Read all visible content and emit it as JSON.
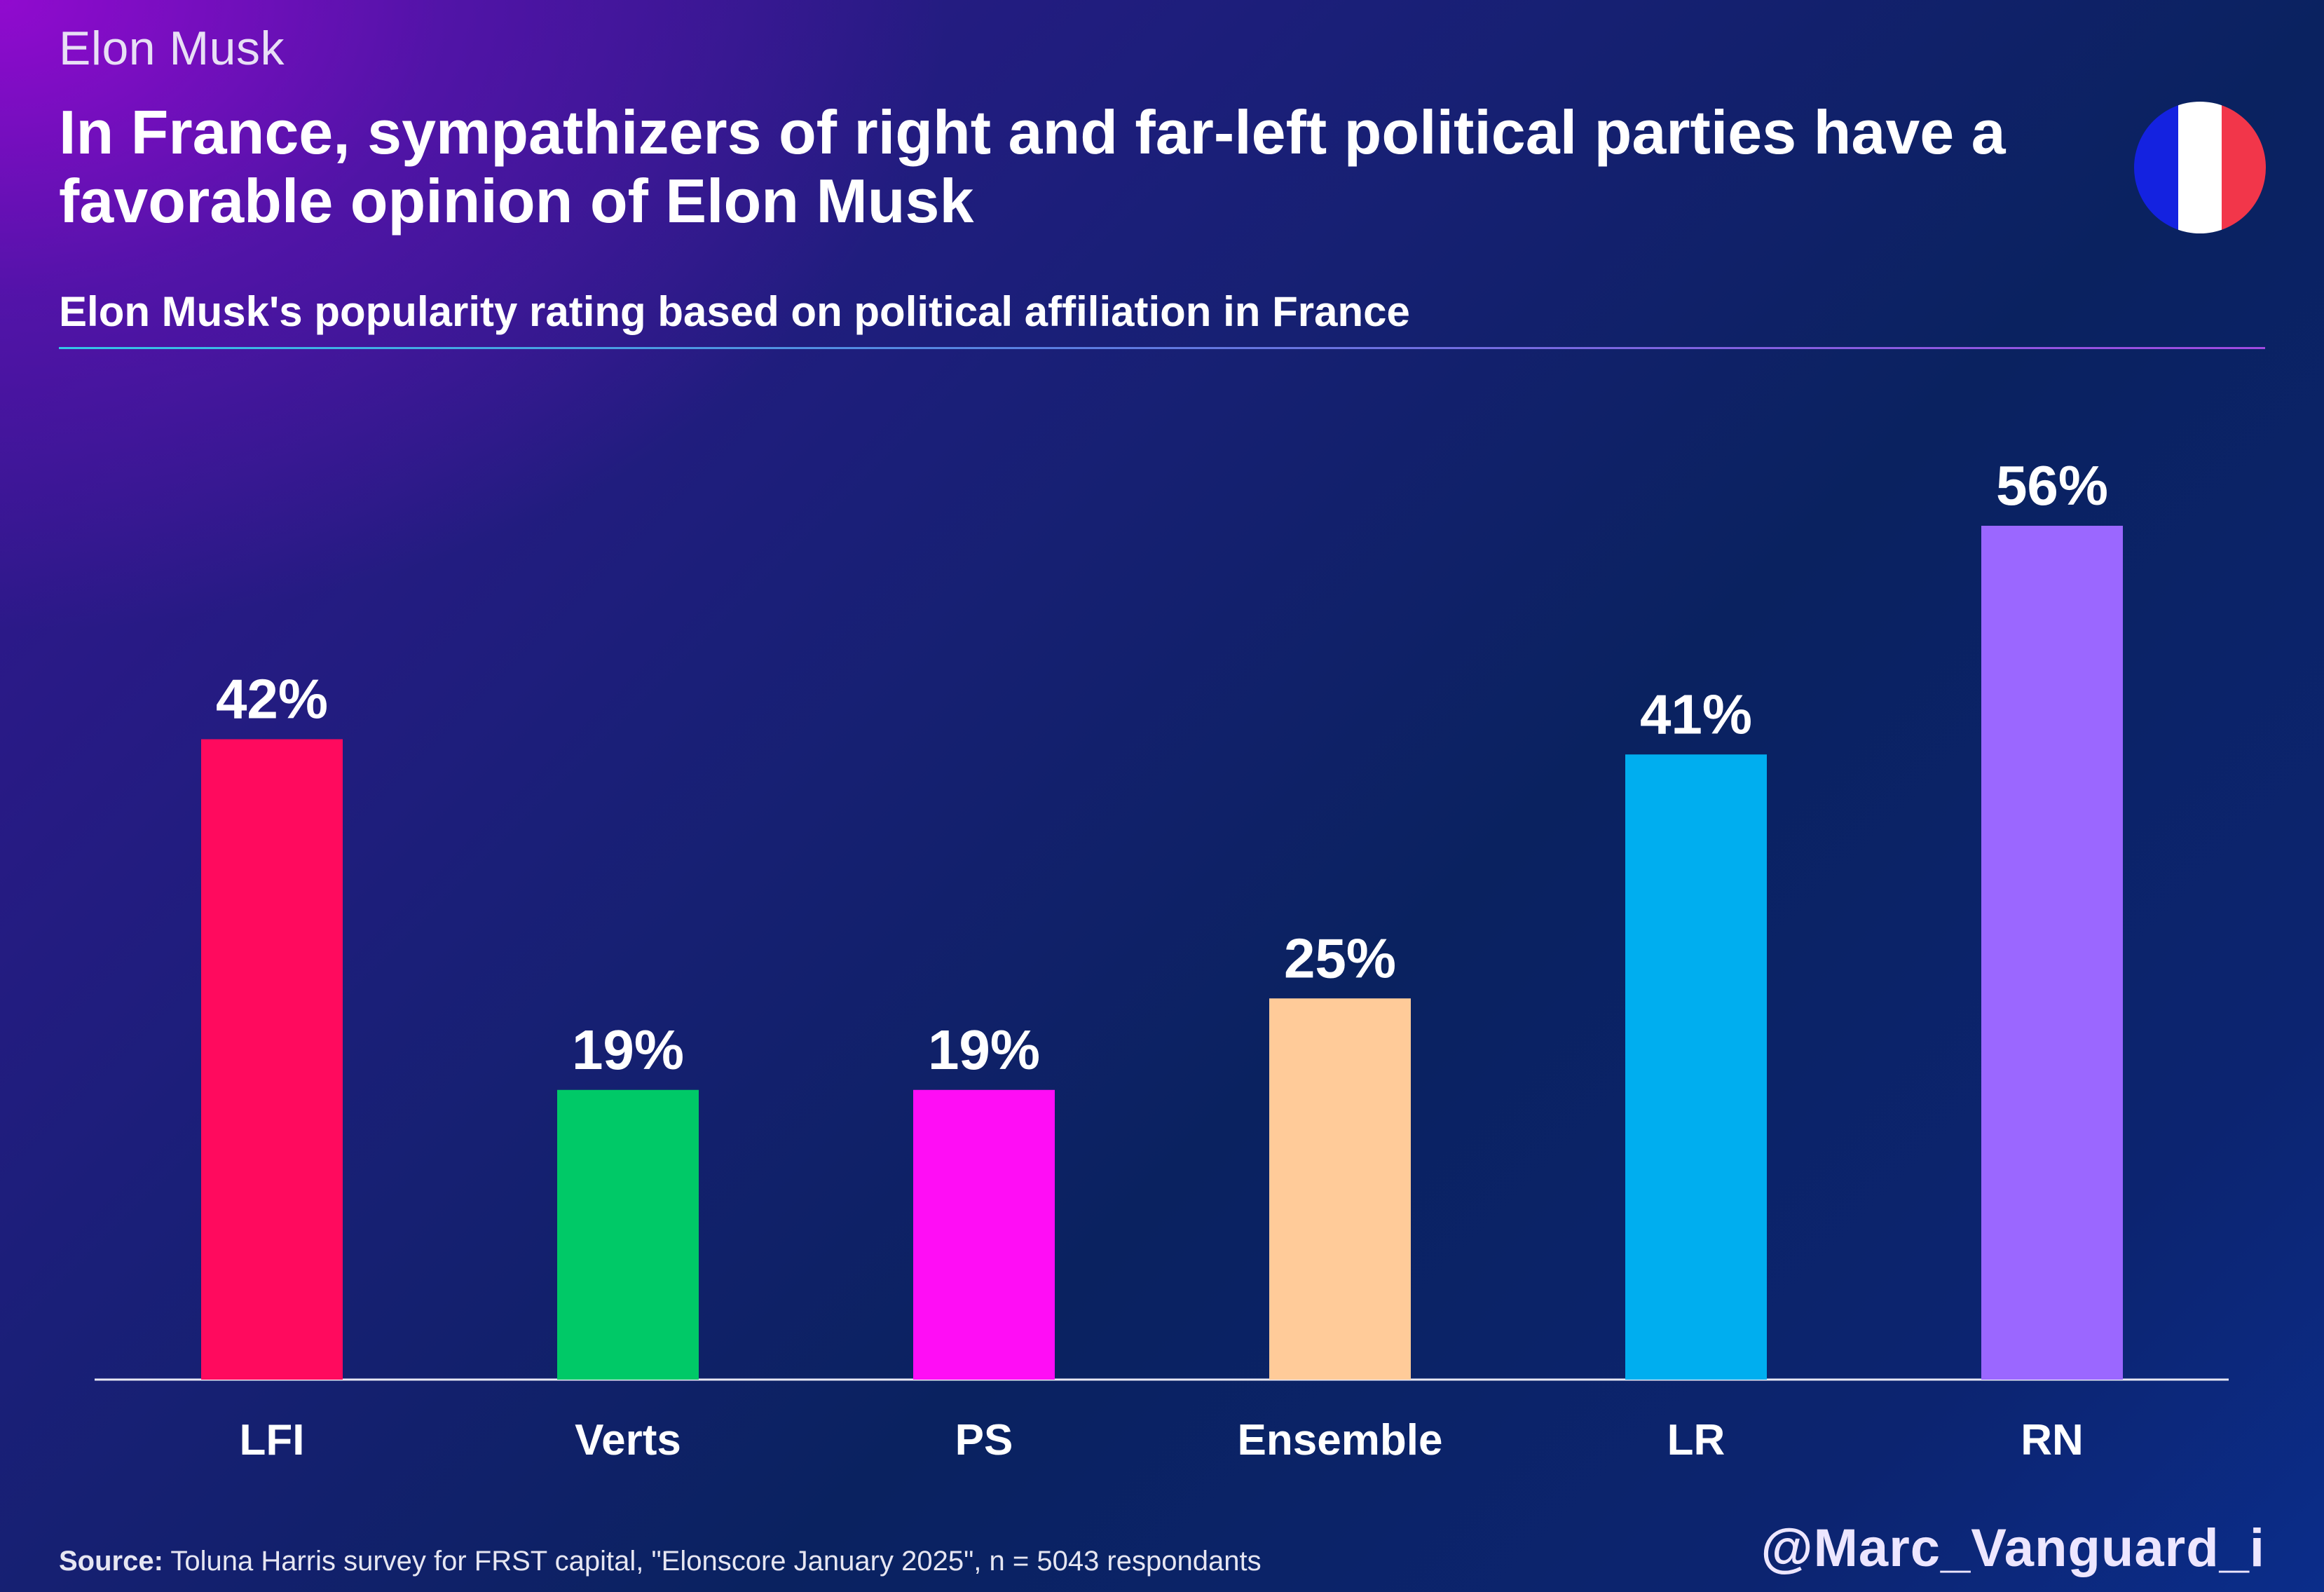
{
  "header": {
    "topic": "Elon Musk",
    "headline": "In France, sympathizers of right and far-left political parties have a favorable opinion of Elon Musk",
    "subtitle": "Elon Musk's popularity rating based on political affiliation in France"
  },
  "flag": {
    "icon": "france-flag-icon",
    "colors": [
      "#1422e0",
      "#ffffff",
      "#f2364a"
    ]
  },
  "chart_data": {
    "type": "bar",
    "title": "Elon Musk's popularity rating based on political affiliation in France",
    "xlabel": "",
    "ylabel": "",
    "unit": "%",
    "ylim": [
      0,
      60
    ],
    "grid": false,
    "categories": [
      "LFI",
      "Verts",
      "PS",
      "Ensemble",
      "LR",
      "RN"
    ],
    "values": [
      42,
      19,
      19,
      25,
      41,
      56
    ],
    "value_labels": [
      "42%",
      "19%",
      "19%",
      "25%",
      "41%",
      "56%"
    ],
    "colors": [
      "#ff0a5e",
      "#00c967",
      "#ff0df5",
      "#ffcb99",
      "#00aeef",
      "#9b67ff"
    ]
  },
  "footer": {
    "source_label": "Source:",
    "source_text": "Toluna Harris survey for FRST capital, \"Elonscore January 2025\", n = 5043 respondants",
    "handle": "@Marc_Vanguard_i"
  }
}
